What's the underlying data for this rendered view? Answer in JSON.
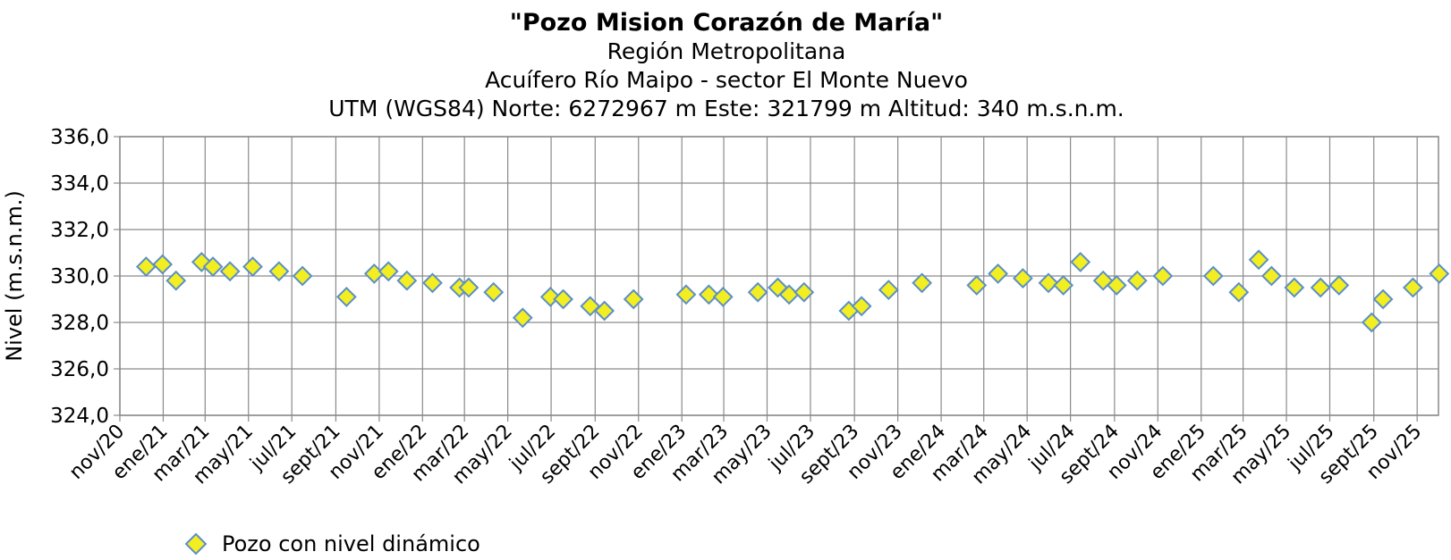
{
  "chart_data": {
    "type": "scatter",
    "title": "\"Pozo Mision Corazón de María\"",
    "subtitles": [
      "Región Metropolitana",
      "Acuífero Río Maipo - sector El Monte Nuevo",
      "UTM (WGS84) Norte: 6272967 m Este: 321799 m   Altitud: 340 m.s.n.m."
    ],
    "ylabel": "Nivel (m.s.n.m.)",
    "xlabel": "",
    "ylim": [
      324,
      336
    ],
    "yticks": [
      "324,0",
      "326,0",
      "328,0",
      "330,0",
      "332,0",
      "334,0",
      "336,0"
    ],
    "xlim": [
      "2020-11-01",
      "2025-12-01"
    ],
    "xticks": [
      {
        "date": "2020-11-01",
        "label": "nov/20"
      },
      {
        "date": "2021-01-01",
        "label": "ene/21"
      },
      {
        "date": "2021-03-01",
        "label": "mar/21"
      },
      {
        "date": "2021-05-01",
        "label": "may/21"
      },
      {
        "date": "2021-07-01",
        "label": "jul/21"
      },
      {
        "date": "2021-09-01",
        "label": "sept/21"
      },
      {
        "date": "2021-11-01",
        "label": "nov/21"
      },
      {
        "date": "2022-01-01",
        "label": "ene/22"
      },
      {
        "date": "2022-03-01",
        "label": "mar/22"
      },
      {
        "date": "2022-05-01",
        "label": "may/22"
      },
      {
        "date": "2022-07-01",
        "label": "jul/22"
      },
      {
        "date": "2022-09-01",
        "label": "sept/22"
      },
      {
        "date": "2022-11-01",
        "label": "nov/22"
      },
      {
        "date": "2023-01-01",
        "label": "ene/23"
      },
      {
        "date": "2023-03-01",
        "label": "mar/23"
      },
      {
        "date": "2023-05-01",
        "label": "may/23"
      },
      {
        "date": "2023-07-01",
        "label": "jul/23"
      },
      {
        "date": "2023-09-01",
        "label": "sept/23"
      },
      {
        "date": "2023-11-01",
        "label": "nov/23"
      },
      {
        "date": "2024-01-01",
        "label": "ene/24"
      },
      {
        "date": "2024-03-01",
        "label": "mar/24"
      },
      {
        "date": "2024-05-01",
        "label": "may/24"
      },
      {
        "date": "2024-07-01",
        "label": "jul/24"
      },
      {
        "date": "2024-09-01",
        "label": "sept/24"
      },
      {
        "date": "2024-11-01",
        "label": "nov/24"
      },
      {
        "date": "2025-01-01",
        "label": "ene/25"
      },
      {
        "date": "2025-03-01",
        "label": "mar/25"
      },
      {
        "date": "2025-05-01",
        "label": "may/25"
      },
      {
        "date": "2025-07-01",
        "label": "jul/25"
      },
      {
        "date": "2025-09-01",
        "label": "sept/25"
      },
      {
        "date": "2025-11-01",
        "label": "nov/25"
      }
    ],
    "grid": true,
    "legend_position": "bottom-left",
    "series": [
      {
        "name": "Pozo con nivel dinámico",
        "marker": "diamond",
        "color": "#f2ee21",
        "edge_color": "#5b8fc7",
        "points": [
          {
            "x": "2020-12-08",
            "y": 330.4
          },
          {
            "x": "2020-12-31",
            "y": 330.5
          },
          {
            "x": "2021-01-19",
            "y": 329.8
          },
          {
            "x": "2021-02-24",
            "y": 330.6
          },
          {
            "x": "2021-03-12",
            "y": 330.4
          },
          {
            "x": "2021-04-05",
            "y": 330.2
          },
          {
            "x": "2021-05-07",
            "y": 330.4
          },
          {
            "x": "2021-06-13",
            "y": 330.2
          },
          {
            "x": "2021-07-16",
            "y": 330.0
          },
          {
            "x": "2021-09-16",
            "y": 329.1
          },
          {
            "x": "2021-10-25",
            "y": 330.1
          },
          {
            "x": "2021-11-14",
            "y": 330.2
          },
          {
            "x": "2021-12-10",
            "y": 329.8
          },
          {
            "x": "2022-01-15",
            "y": 329.7
          },
          {
            "x": "2022-02-22",
            "y": 329.5
          },
          {
            "x": "2022-03-07",
            "y": 329.5
          },
          {
            "x": "2022-04-11",
            "y": 329.3
          },
          {
            "x": "2022-05-22",
            "y": 328.2
          },
          {
            "x": "2022-06-30",
            "y": 329.1
          },
          {
            "x": "2022-07-18",
            "y": 329.0
          },
          {
            "x": "2022-08-25",
            "y": 328.7
          },
          {
            "x": "2022-09-14",
            "y": 328.5
          },
          {
            "x": "2022-10-25",
            "y": 329.0
          },
          {
            "x": "2023-01-07",
            "y": 329.2
          },
          {
            "x": "2023-02-08",
            "y": 329.2
          },
          {
            "x": "2023-02-28",
            "y": 329.1
          },
          {
            "x": "2023-04-18",
            "y": 329.3
          },
          {
            "x": "2023-05-16",
            "y": 329.5
          },
          {
            "x": "2023-06-01",
            "y": 329.2
          },
          {
            "x": "2023-06-22",
            "y": 329.3
          },
          {
            "x": "2023-08-24",
            "y": 328.5
          },
          {
            "x": "2023-09-11",
            "y": 328.7
          },
          {
            "x": "2023-10-19",
            "y": 329.4
          },
          {
            "x": "2023-12-05",
            "y": 329.7
          },
          {
            "x": "2024-02-20",
            "y": 329.6
          },
          {
            "x": "2024-03-21",
            "y": 330.1
          },
          {
            "x": "2024-04-25",
            "y": 329.9
          },
          {
            "x": "2024-05-31",
            "y": 329.7
          },
          {
            "x": "2024-06-21",
            "y": 329.6
          },
          {
            "x": "2024-07-15",
            "y": 330.6
          },
          {
            "x": "2024-08-16",
            "y": 329.8
          },
          {
            "x": "2024-09-04",
            "y": 329.6
          },
          {
            "x": "2024-10-03",
            "y": 329.8
          },
          {
            "x": "2024-11-08",
            "y": 330.0
          },
          {
            "x": "2025-01-18",
            "y": 330.0
          },
          {
            "x": "2025-02-23",
            "y": 329.3
          },
          {
            "x": "2025-03-23",
            "y": 330.7
          },
          {
            "x": "2025-04-10",
            "y": 330.0
          },
          {
            "x": "2025-05-12",
            "y": 329.5
          },
          {
            "x": "2025-06-18",
            "y": 329.5
          },
          {
            "x": "2025-07-14",
            "y": 329.6
          },
          {
            "x": "2025-08-29",
            "y": 328.0
          },
          {
            "x": "2025-09-14",
            "y": 329.0
          },
          {
            "x": "2025-10-26",
            "y": 329.5
          },
          {
            "x": "2025-12-02",
            "y": 330.1
          }
        ]
      }
    ]
  }
}
